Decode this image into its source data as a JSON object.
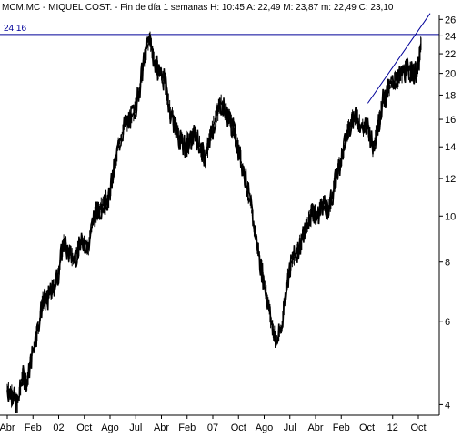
{
  "header": {
    "ticker": "MCM.MC",
    "name": "MIQUEL COST.",
    "period": "Fin de día 1 semanas",
    "time_label": "H: 10:45",
    "open_label": "A: 22,49",
    "high_label": "M: 23,87",
    "low_label": "m: 22,49",
    "close_label": "C: 23,10"
  },
  "colors": {
    "background": "#ffffff",
    "price_line": "#000000",
    "overlay_line": "#000099",
    "frame": "#000000"
  },
  "chart_data": {
    "type": "line",
    "scale": "log",
    "title": "",
    "xlabel": "",
    "ylabel": "",
    "grid": false,
    "legend": "none",
    "ylim": [
      3.8,
      26.5
    ],
    "y_ticks": [
      "26",
      "24",
      "22",
      "20",
      "18",
      "16",
      "14",
      "12",
      "10",
      "8",
      "6",
      "4"
    ],
    "x_ticks": [
      "Abr",
      "Feb",
      "02",
      "Oct",
      "Ago",
      "Jul",
      "Abr",
      "Feb",
      "07",
      "Oct",
      "Ago",
      "Jul",
      "Abr",
      "Feb",
      "Oct",
      "12",
      "Oct"
    ],
    "x_range": [
      "1999-04",
      "2012-11"
    ],
    "series": [
      {
        "x": [
          "1999-04",
          "1999-06",
          "1999-08",
          "1999-10",
          "1999-12",
          "2000-02",
          "2000-04",
          "2000-06",
          "2000-08",
          "2000-10",
          "2000-12",
          "2001-02",
          "2001-04",
          "2001-06",
          "2001-08",
          "2001-10",
          "2001-12",
          "2002-02",
          "2002-04",
          "2002-06",
          "2002-08",
          "2002-10",
          "2002-12",
          "2003-02",
          "2003-04",
          "2003-06",
          "2003-08",
          "2003-10",
          "2003-12",
          "2004-02",
          "2004-04",
          "2004-06",
          "2004-08",
          "2004-10",
          "2004-12",
          "2005-02",
          "2005-04",
          "2005-06",
          "2005-08",
          "2005-10",
          "2005-12",
          "2006-02",
          "2006-04",
          "2006-06",
          "2006-08",
          "2006-10",
          "2006-12",
          "2007-02",
          "2007-04",
          "2007-06",
          "2007-08",
          "2007-10",
          "2007-12",
          "2008-02",
          "2008-04",
          "2008-06",
          "2008-08",
          "2008-10",
          "2008-12",
          "2009-02",
          "2009-04",
          "2009-06",
          "2009-08",
          "2009-10",
          "2009-12",
          "2010-02",
          "2010-04",
          "2010-06",
          "2010-08",
          "2010-10",
          "2010-12",
          "2011-02",
          "2011-04",
          "2011-06",
          "2011-08",
          "2011-10",
          "2011-12",
          "2012-02",
          "2012-04",
          "2012-06",
          "2012-08",
          "2012-10",
          "2012-11"
        ],
        "values": [
          4.3,
          4.2,
          4.0,
          4.6,
          4.5,
          5.2,
          5.8,
          6.6,
          6.7,
          7.0,
          7.5,
          8.8,
          8.4,
          8.1,
          8.5,
          8.9,
          8.6,
          10.0,
          10.3,
          10.6,
          10.9,
          12.5,
          14.2,
          15.5,
          15.9,
          16.6,
          18.5,
          21.5,
          24.0,
          21.0,
          20.2,
          19.3,
          16.8,
          15.6,
          14.5,
          14.0,
          14.3,
          15.0,
          14.0,
          13.1,
          14.8,
          16.0,
          17.4,
          16.6,
          15.9,
          14.6,
          13.2,
          11.9,
          10.4,
          9.0,
          7.8,
          6.9,
          6.0,
          5.4,
          5.8,
          7.2,
          8.0,
          8.4,
          8.9,
          9.5,
          10.3,
          9.9,
          10.7,
          10.2,
          11.0,
          12.4,
          13.5,
          15.0,
          16.2,
          16.0,
          15.3,
          15.6,
          14.0,
          15.4,
          17.5,
          18.4,
          19.2,
          19.5,
          20.2,
          20.4,
          20.0,
          20.6,
          23.1
        ]
      }
    ],
    "resistance_level": 24.16,
    "annotations": [
      "24.16"
    ],
    "trendline": {
      "from": {
        "x": "2011-02",
        "y": 17.3
      },
      "to": {
        "x": "2012-11",
        "y": 26.3
      }
    }
  }
}
